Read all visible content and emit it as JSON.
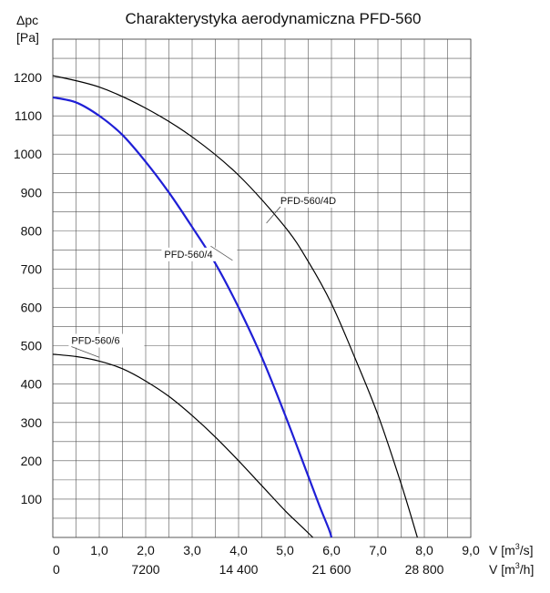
{
  "chart_data": {
    "type": "line",
    "title": "Charakterystyka aerodynamiczna PFD-560",
    "ylabel_top": "Δpc",
    "ylabel_unit": "[Pa]",
    "xlabel_primary": "V [m³/s]",
    "xlabel_secondary": "V [m³/h]",
    "x_ticks": [
      "0",
      "1,0",
      "2,0",
      "3,0",
      "4,0",
      "5,0",
      "6,0",
      "7,0",
      "8,0",
      "9,0"
    ],
    "x2_ticks": [
      "0",
      "7200",
      "14 400",
      "21 600",
      "28 800"
    ],
    "y_ticks": [
      "100",
      "200",
      "300",
      "400",
      "500",
      "600",
      "700",
      "800",
      "900",
      "1000",
      "1100",
      "1200"
    ],
    "xlim": [
      0,
      9
    ],
    "ylim": [
      0,
      1300
    ],
    "grid": true,
    "series": [
      {
        "name": "PFD-560/4D",
        "color": "#000000",
        "x": [
          0,
          1,
          2,
          3,
          4,
          5,
          5.5,
          6,
          6.5,
          7,
          7.5,
          7.85
        ],
        "y": [
          1205,
          1175,
          1120,
          1045,
          945,
          810,
          720,
          610,
          470,
          320,
          140,
          0
        ]
      },
      {
        "name": "PFD-560/4",
        "color": "#1f1fd6",
        "x": [
          0,
          0.5,
          1,
          1.5,
          2,
          2.5,
          3,
          3.5,
          4,
          4.5,
          5,
          5.5,
          5.75,
          5.95,
          6.0
        ],
        "y": [
          1148,
          1135,
          1100,
          1050,
          980,
          900,
          810,
          715,
          600,
          470,
          320,
          160,
          80,
          20,
          0
        ]
      },
      {
        "name": "PFD-560/6",
        "color": "#000000",
        "x": [
          0,
          0.5,
          1,
          1.5,
          2,
          2.5,
          3,
          3.5,
          4,
          4.5,
          5,
          5.3,
          5.6
        ],
        "y": [
          478,
          472,
          460,
          440,
          408,
          368,
          318,
          262,
          200,
          135,
          70,
          35,
          0
        ]
      }
    ]
  }
}
